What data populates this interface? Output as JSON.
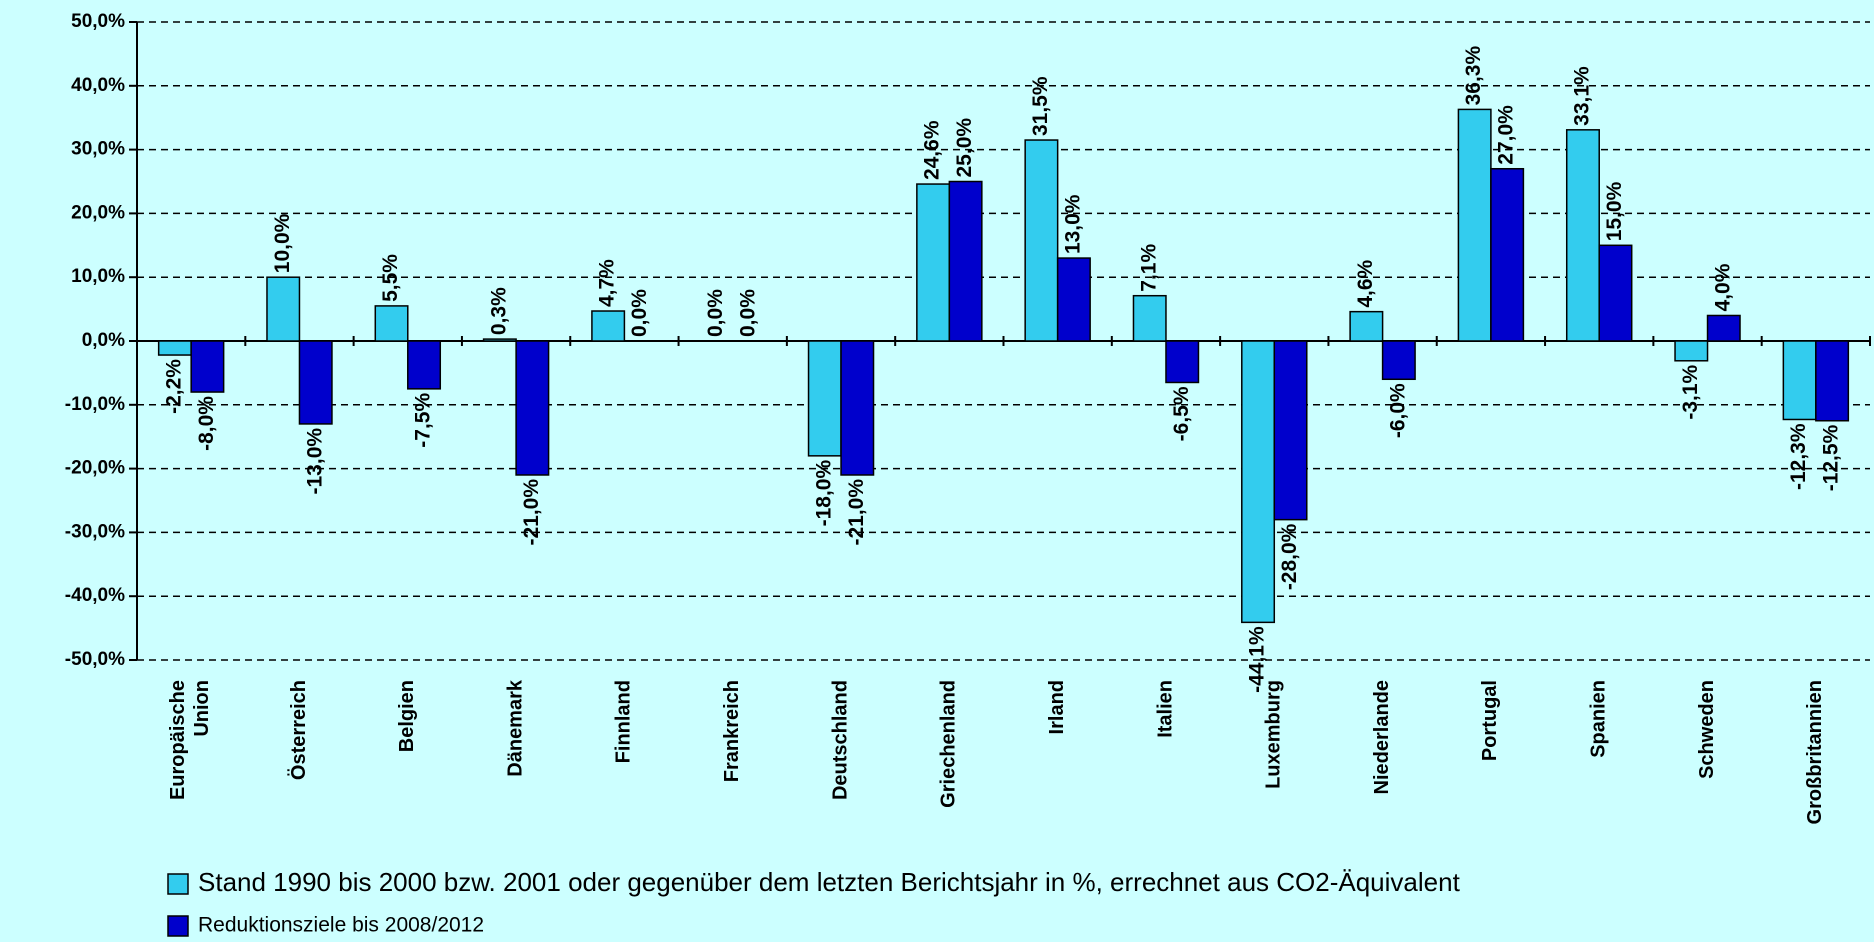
{
  "chart_data": {
    "type": "bar",
    "categories": [
      "Europäische Union",
      "Österreich",
      "Belgien",
      "Dänemark",
      "Finnland",
      "Frankreich",
      "Deutschland",
      "Griechenland",
      "Irland",
      "Italien",
      "Luxemburg",
      "Niederlande",
      "Portugal",
      "Spanien",
      "Schweden",
      "Großbritannien"
    ],
    "series": [
      {
        "name": "Stand 1990 bis 2000 bzw. 2001 oder gegenüber dem letzten Berichtsjahr in %, errechnet aus CO2-Äquivalent",
        "color": "#33ccee",
        "values": [
          -2.2,
          10.0,
          5.5,
          0.3,
          4.7,
          0.0,
          -18.0,
          24.6,
          31.5,
          7.1,
          -44.1,
          4.6,
          36.3,
          33.1,
          -3.1,
          -12.3
        ],
        "value_labels": [
          "-2,2%",
          "10,0%",
          "5,5%",
          "0,3%",
          "4,7%",
          "0,0%",
          "-18,0%",
          "24,6%",
          "31,5%",
          "7,1%",
          "-44,1%",
          "4,6%",
          "36,3%",
          "33,1%",
          "-3,1%",
          "-12,3%"
        ]
      },
      {
        "name": "Reduktionsziele bis 2008/2012",
        "color": "#0000cc",
        "values": [
          -8.0,
          -13.0,
          -7.5,
          -21.0,
          0.0,
          0.0,
          -21.0,
          25.0,
          13.0,
          -6.5,
          -28.0,
          -6.0,
          27.0,
          15.0,
          4.0,
          -12.5
        ],
        "value_labels": [
          "-8,0%",
          "-13,0%",
          "-7,5%",
          "-21,0%",
          "0,0%",
          "0,0%",
          "-21,0%",
          "25,0%",
          "13,0%",
          "-6,5%",
          "-28,0%",
          "-6,0%",
          "27,0%",
          "15,0%",
          "4,0%",
          "-12,5%"
        ]
      }
    ],
    "ylim": [
      -50,
      50
    ],
    "yticks": [
      {
        "value": -50,
        "label": "-50,0%"
      },
      {
        "value": -40,
        "label": "-40,0%"
      },
      {
        "value": -30,
        "label": "-30,0%"
      },
      {
        "value": -20,
        "label": "-20,0%"
      },
      {
        "value": -10,
        "label": "-10,0%"
      },
      {
        "value": 0,
        "label": "0,0%"
      },
      {
        "value": 10,
        "label": "10,0%"
      },
      {
        "value": 20,
        "label": "20,0%"
      },
      {
        "value": 30,
        "label": "30,0%"
      },
      {
        "value": 40,
        "label": "40,0%"
      },
      {
        "value": 50,
        "label": "50,0%"
      }
    ],
    "grid": true
  }
}
